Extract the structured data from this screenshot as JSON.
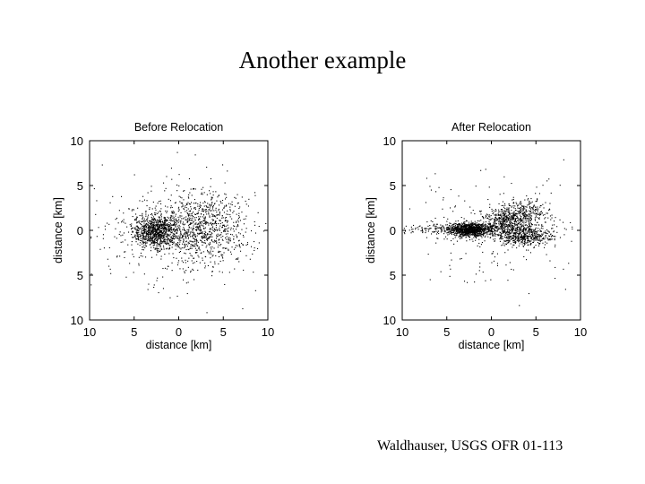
{
  "slide": {
    "title": "Another example",
    "credit": "Waldhauser, USGS OFR 01-113"
  },
  "chart_data": [
    {
      "type": "scatter",
      "title": "Before Relocation",
      "xlabel": "distance [km]",
      "ylabel": "distance [km]",
      "xlim": [
        -10,
        10
      ],
      "ylim": [
        -10,
        10
      ],
      "x_ticks": [
        -10,
        -5,
        0,
        5,
        10
      ],
      "y_ticks": [
        -10,
        -5,
        0,
        5,
        10
      ],
      "x_tick_labels": [
        "10",
        "5",
        "0",
        "5",
        "10"
      ],
      "y_tick_labels": [
        "10",
        "5",
        "0",
        "5",
        "10"
      ],
      "grid": false,
      "point_color": "#000000",
      "clusters": [
        {
          "cx": -2.6,
          "cy": -0.1,
          "sx": 1.3,
          "sy": 0.9,
          "n": 900
        },
        {
          "cx": 2.6,
          "cy": 0.4,
          "sx": 2.4,
          "sy": 1.8,
          "n": 750
        },
        {
          "cx": 0.2,
          "cy": 0.0,
          "sx": 5.0,
          "sy": 3.0,
          "n": 450
        }
      ]
    },
    {
      "type": "scatter",
      "title": "After Relocation",
      "xlabel": "distance [km]",
      "ylabel": "distance [km]",
      "xlim": [
        -10,
        10
      ],
      "ylim": [
        -10,
        10
      ],
      "x_ticks": [
        -10,
        -5,
        0,
        5,
        10
      ],
      "y_ticks": [
        -10,
        -5,
        0,
        5,
        10
      ],
      "x_tick_labels": [
        "10",
        "5",
        "0",
        "5",
        "10"
      ],
      "y_tick_labels": [
        "10",
        "5",
        "0",
        "5",
        "10"
      ],
      "grid": false,
      "point_color": "#000000",
      "clusters": [
        {
          "cx": -2.6,
          "cy": 0.1,
          "sx": 1.1,
          "sy": 0.4,
          "n": 800
        },
        {
          "cx": -1.5,
          "cy": 0.2,
          "sx": 3.8,
          "sy": 0.3,
          "n": 500
        },
        {
          "cx": 3.4,
          "cy": -0.6,
          "sx": 1.6,
          "sy": 0.5,
          "n": 500
        },
        {
          "cx": 1.6,
          "cy": 1.3,
          "sx": 1.1,
          "sy": 0.6,
          "n": 350
        },
        {
          "cx": 4.0,
          "cy": 2.0,
          "sx": 1.2,
          "sy": 0.8,
          "n": 250
        },
        {
          "cx": 0.2,
          "cy": 0.0,
          "sx": 5.0,
          "sy": 3.0,
          "n": 220
        }
      ]
    }
  ]
}
